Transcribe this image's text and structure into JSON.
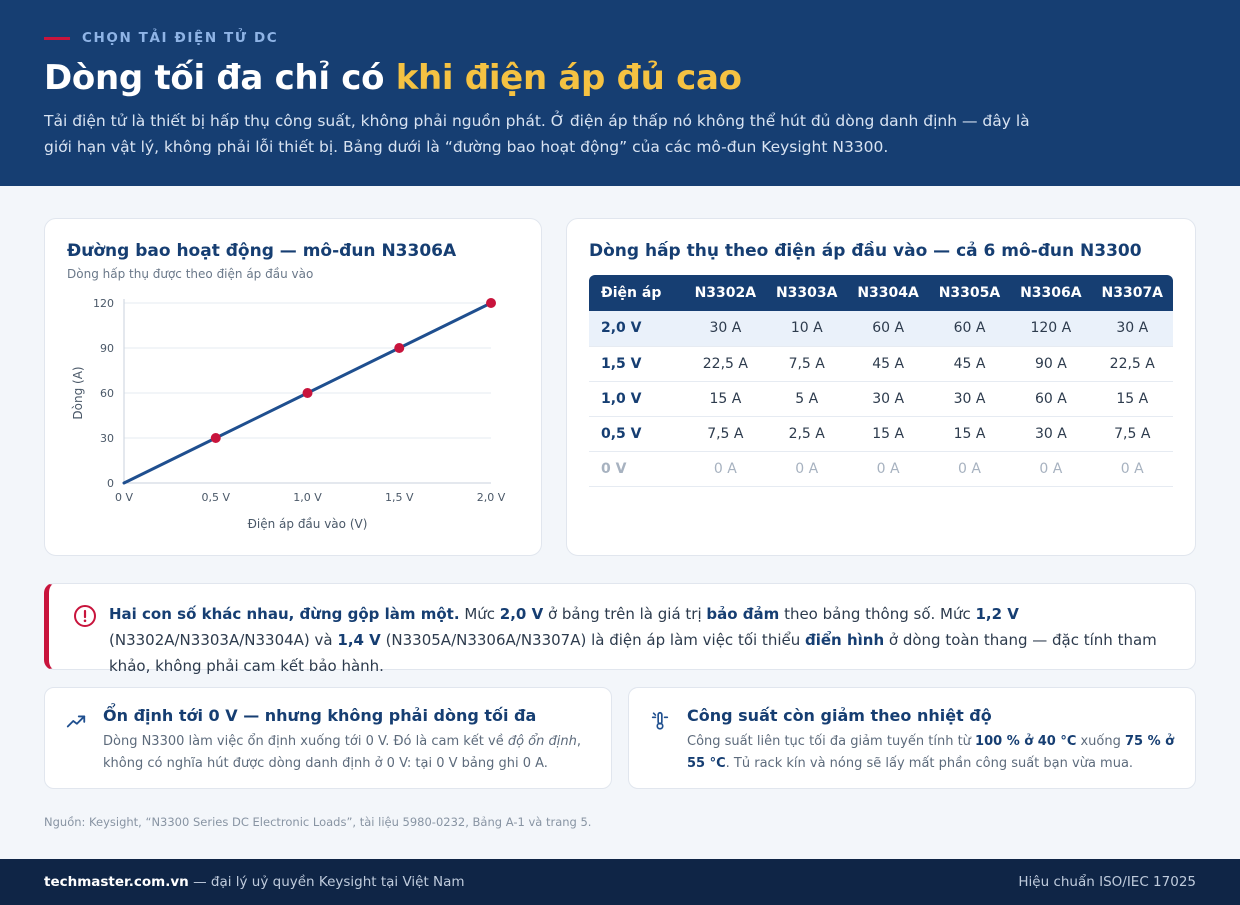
{
  "header": {
    "eyebrow": "CHỌN TẢI ĐIỆN TỬ DC",
    "title_main": "Dòng tối đa chỉ có ",
    "title_highlight": "khi điện áp đủ cao",
    "lede": "Tải điện tử là thiết bị hấp thụ công suất, không phải nguồn phát. Ở điện áp thấp nó không thể hút đủ dòng danh định — đây là giới hạn vật lý, không phải lỗi thiết bị. Bảng dưới là “đường bao hoạt động” của các mô-đun Keysight N3300."
  },
  "chart_card": {
    "title": "Đường bao hoạt động — mô-đun N3306A",
    "subtitle": "Dòng hấp thụ được theo điện áp đầu vào"
  },
  "chart_data": {
    "type": "line",
    "x": [
      0,
      0.5,
      1.0,
      1.5,
      2.0
    ],
    "y": [
      0,
      30,
      60,
      90,
      120
    ],
    "x_tick_labels": [
      "0 V",
      "0,5 V",
      "1,0 V",
      "1,5 V",
      "2,0 V"
    ],
    "y_ticks": [
      0,
      30,
      60,
      90,
      120
    ],
    "xlabel": "Điện áp đầu vào (V)",
    "ylabel": "Dòng (A)",
    "xlim": [
      0,
      2.0
    ],
    "ylim": [
      0,
      120
    ],
    "grid": "horizontal",
    "markers": [
      0.5,
      1.0,
      1.5,
      2.0
    ],
    "colors": {
      "line": "#1f4f8f",
      "marker": "#c8143c",
      "grid": "#e6ebf2"
    }
  },
  "table_card": {
    "title": "Dòng hấp thụ theo điện áp đầu vào — cả 6 mô-đun N3300",
    "headers": [
      "Điện áp",
      "N3302A",
      "N3303A",
      "N3304A",
      "N3305A",
      "N3306A",
      "N3307A"
    ],
    "rows": [
      [
        "2,0 V",
        "30 A",
        "10 A",
        "60 A",
        "60 A",
        "120 A",
        "30 A"
      ],
      [
        "1,5 V",
        "22,5 A",
        "7,5 A",
        "45 A",
        "45 A",
        "90 A",
        "22,5 A"
      ],
      [
        "1,0 V",
        "15 A",
        "5 A",
        "30 A",
        "30 A",
        "60 A",
        "15 A"
      ],
      [
        "0,5 V",
        "7,5 A",
        "2,5 A",
        "15 A",
        "15 A",
        "30 A",
        "7,5 A"
      ],
      [
        "0 V",
        "0 A",
        "0 A",
        "0 A",
        "0 A",
        "0 A",
        "0 A"
      ]
    ]
  },
  "alert": {
    "icon": "alert-circle-icon",
    "lead": "Hai con số khác nhau, đừng gộp làm một.",
    "t1": " Mức ",
    "b1": "2,0 V",
    "t2": " ở bảng trên là giá trị ",
    "b2": "bảo đảm",
    "t3": " theo bảng thông số. Mức ",
    "b3": "1,2 V",
    "t4": " (N3302A/N3303A/N3304A) và ",
    "b4": "1,4 V",
    "t5": " (N3305A/N3306A/N3307A) là điện áp làm việc tối thiểu ",
    "b5": "điển hình",
    "t6": " ở dòng toàn thang — đặc tính tham khảo, không phải cam kết bảo hành."
  },
  "info_cards": [
    {
      "icon": "trend-up-icon",
      "title": "Ổn định tới 0 V — nhưng không phải dòng tối đa",
      "t1": "Dòng N3300 làm việc ổn định xuống tới 0 V. Đó là cam kết về ",
      "em": "độ ổn định",
      "t2": ", không có nghĩa hút được dòng danh định ở 0 V: tại 0 V bảng ghi 0 A."
    },
    {
      "icon": "thermometer-sun-icon",
      "title": "Công suất còn giảm theo nhiệt độ",
      "t1": "Công suất liên tục tối đa giảm tuyến tính từ ",
      "b1": "100 % ở 40 °C",
      "t2": " xuống ",
      "b2": "75 % ở 55 °C",
      "t3": ". Tủ rack kín và nóng sẽ lấy mất phần công suất bạn vừa mua."
    }
  ],
  "source": "Nguồn: Keysight, “N3300 Series DC Electronic Loads”, tài liệu 5980-0232, Bảng A-1 và trang 5.",
  "footer": {
    "brand": "techmaster.com.vn",
    "tagline": " — đại lý uỷ quyền Keysight tại Việt Nam",
    "cert": "Hiệu chuẩn ISO/IEC 17025"
  }
}
